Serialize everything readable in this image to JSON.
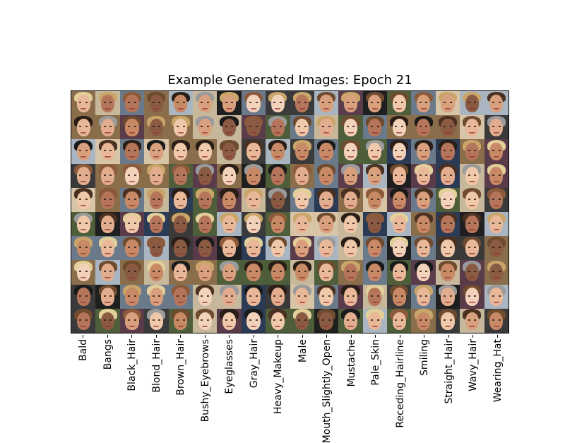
{
  "title": "Example Generated Images: Epoch 21",
  "attributes": [
    "Bald",
    "Bangs",
    "Black_Hair",
    "Blond_Hair",
    "Brown_Hair",
    "Bushy_Eyebrows",
    "Eyeglasses",
    "Gray_Hair",
    "Heavy_Makeup",
    "Male",
    "Mouth_Slightly_Open",
    "Mustache",
    "Pale_Skin",
    "Receding_Hairline",
    "Smiling",
    "Straight_Hair",
    "Wavy_Hair",
    "Wearing_Hat"
  ],
  "grid": {
    "columns": 18,
    "rows": 10
  },
  "palette": {
    "skin": [
      "#e8b899",
      "#d9a07e",
      "#f0c8aa",
      "#c88a66",
      "#b5755a",
      "#e2ad8e",
      "#8a5a43",
      "#f3d2bc"
    ],
    "hair": [
      "#2a1d16",
      "#4a3020",
      "#6e4a2e",
      "#c9a56a",
      "#e2cf9a",
      "#9a9a9a",
      "#1a1a1a",
      "#8b5a3a"
    ],
    "background": [
      "#6b7a8a",
      "#3a3a3a",
      "#c7b79b",
      "#2b3a55",
      "#8a6d4a",
      "#1f1f1f",
      "#a9b6c2",
      "#4f5e3a",
      "#d8c4a6",
      "#5a3b4a"
    ]
  }
}
